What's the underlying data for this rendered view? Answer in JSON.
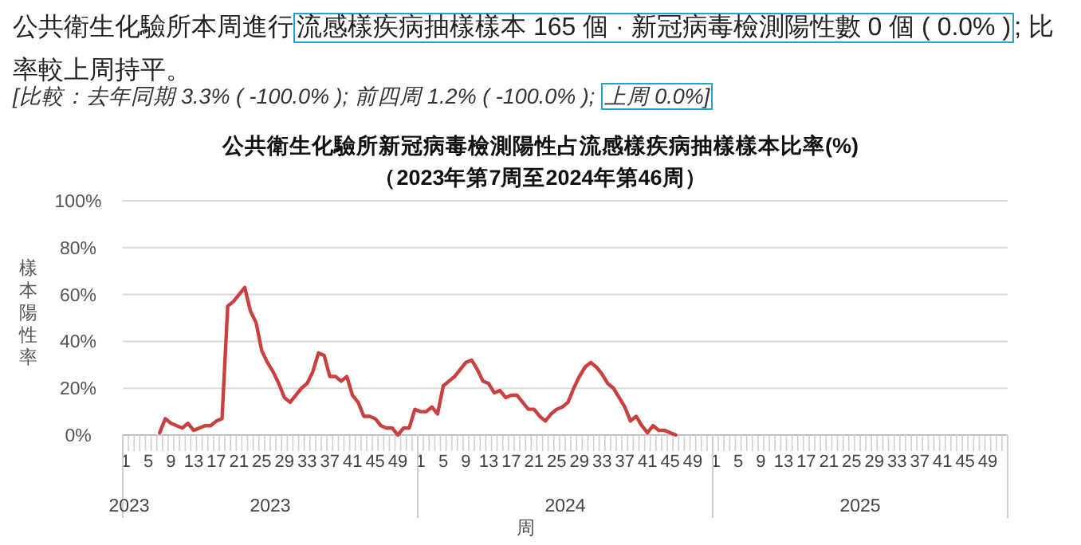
{
  "chart_data": {
    "type": "line",
    "title": "公共衛生化驗所新冠病毒檢測陽性占流感樣疾病抽樣樣本比率(%)",
    "subtitle": "（2023年第7周至2024年第46周）",
    "xlabel": "周",
    "ylabel": "樣本陽性率",
    "annotations": [
      "公共衛生化驗所本周進行",
      "流感樣疾病抽樣樣本 165 個 · 新冠病毒檢測陽性數 0 個 ( 0.0% )",
      "; 比率較上周持平。",
      "[比較：去年同期 3.3% ( -100.0% ); 前四周 1.2% ( -100.0% ); ",
      "上周 0.0%]",
      "2023",
      "2023",
      "2024",
      "2025"
    ],
    "categories": [
      "1",
      null,
      null,
      null,
      "5",
      null,
      null,
      null,
      "9",
      null,
      null,
      null,
      "13",
      null,
      null,
      null,
      "17",
      null,
      null,
      null,
      "21",
      null,
      null,
      null,
      "25",
      null,
      null,
      null,
      "29",
      null,
      null,
      null,
      "33",
      null,
      null,
      null,
      "37",
      null,
      null,
      null,
      "41",
      null,
      null,
      null,
      "45",
      null,
      null,
      null,
      "49",
      null,
      null,
      null,
      "1",
      null,
      null,
      null,
      "5",
      null,
      null,
      null,
      "9",
      null,
      null,
      null,
      "13",
      null,
      null,
      null,
      "17",
      null,
      null,
      null,
      "21",
      null,
      null,
      null,
      "25",
      null,
      null,
      null,
      "29",
      null,
      null,
      null,
      "33",
      null,
      null,
      null,
      "37",
      null,
      null,
      null,
      "41",
      null,
      null,
      null,
      "45",
      null,
      null,
      null,
      "49",
      null,
      null,
      null,
      "1",
      null,
      null,
      null,
      "5",
      null,
      null,
      null,
      "9",
      null,
      null,
      null,
      "13",
      null,
      null,
      null,
      "17",
      null,
      null,
      null,
      "21",
      null,
      null,
      null,
      "25",
      null,
      null,
      null,
      "29",
      null,
      null,
      null,
      "33",
      null,
      null,
      null,
      "37",
      null,
      null,
      null,
      "41",
      null,
      null,
      null,
      "45",
      null,
      null,
      null,
      "49",
      null,
      null,
      null
    ],
    "series": [
      {
        "color": "#c9403f",
        "values": [
          null,
          null,
          null,
          null,
          null,
          null,
          1,
          7,
          5,
          4,
          3,
          5,
          2,
          3,
          4,
          4,
          6,
          7,
          55,
          57,
          60,
          63,
          53,
          48,
          36,
          31,
          27,
          22,
          16,
          14,
          17,
          20,
          22,
          27,
          35,
          34,
          25,
          25,
          23,
          25,
          17,
          14,
          8,
          8,
          7,
          4,
          3,
          3,
          0,
          3,
          3,
          11,
          10,
          10,
          12,
          9,
          21,
          23,
          25,
          28,
          31,
          32,
          28,
          23,
          22,
          18,
          19,
          16,
          17,
          17,
          14,
          11,
          11,
          8,
          6,
          9,
          11,
          12,
          14,
          20,
          25,
          29,
          31,
          29,
          26,
          22,
          20,
          16,
          12,
          6,
          8,
          4,
          1,
          4,
          2,
          2,
          1,
          0,
          null,
          null,
          null,
          null,
          null,
          null,
          null,
          null,
          null,
          null,
          null,
          null,
          null,
          null,
          null,
          null,
          null,
          null,
          null,
          null,
          null,
          null,
          null,
          null,
          null,
          null,
          null,
          null,
          null,
          null,
          null,
          null,
          null,
          null,
          null,
          null,
          null,
          null,
          null,
          null,
          null,
          null,
          null,
          null,
          null,
          null,
          null,
          null,
          null,
          null,
          null,
          null,
          null,
          null,
          null,
          null,
          null,
          null
        ]
      }
    ],
    "ylim": [
      0,
      100
    ],
    "yticks": [
      {
        "value": 0,
        "label": "0%"
      },
      {
        "value": 20,
        "label": "20%"
      },
      {
        "value": 40,
        "label": "40%"
      },
      {
        "value": 60,
        "label": "60%"
      },
      {
        "value": 80,
        "label": "80%"
      },
      {
        "value": 100,
        "label": "100%"
      }
    ],
    "grid": "y",
    "marker": "none",
    "line_style": "solid"
  }
}
